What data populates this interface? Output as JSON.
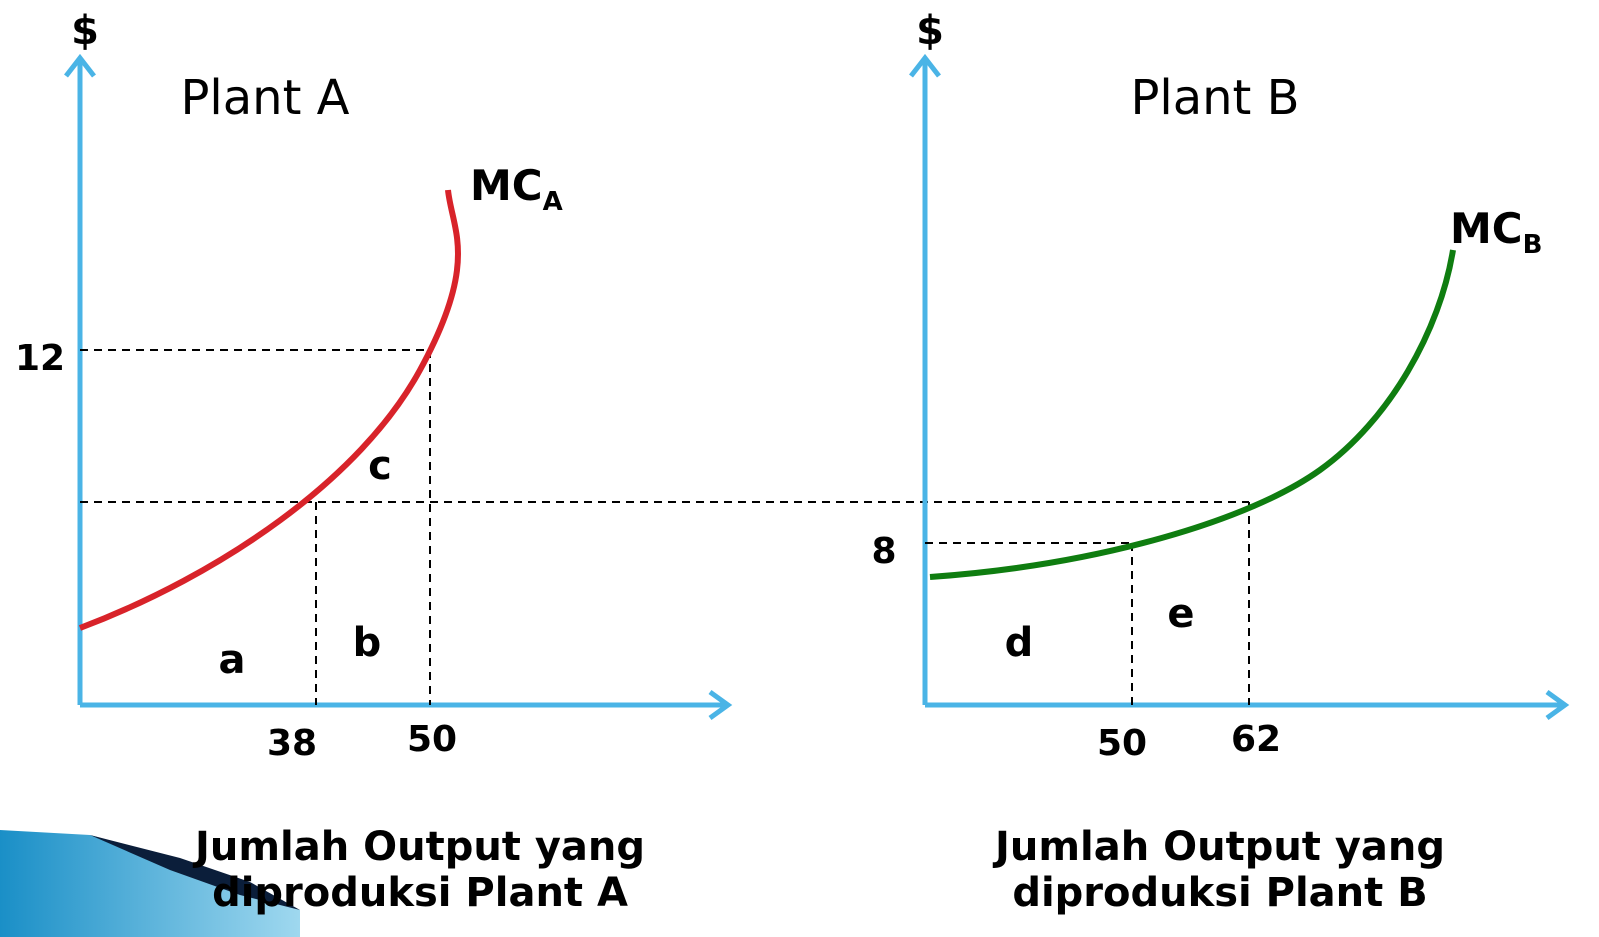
{
  "panels": [
    {
      "y_label": "$",
      "title": "Plant A",
      "curve_label": "MC",
      "curve_subscript": "A",
      "y_tick": "12",
      "x_ticks": [
        "38",
        "50"
      ],
      "regions": [
        "a",
        "b",
        "c"
      ],
      "x_label_lines": [
        "Jumlah Output yang",
        "diproduksi Plant A"
      ]
    },
    {
      "y_label": "$",
      "title": "Plant B",
      "curve_label": "MC",
      "curve_subscript": "B",
      "y_tick": "8",
      "x_ticks": [
        "50",
        "62"
      ],
      "regions": [
        "d",
        "e"
      ],
      "x_label_lines": [
        "Jumlah Output yang",
        "diproduksi Plant B"
      ]
    }
  ]
}
